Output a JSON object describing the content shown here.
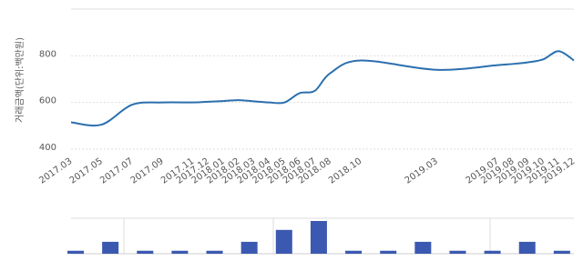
{
  "chart_data": [
    {
      "type": "line",
      "y_label": "거래금액(단위:백만원)",
      "categories": [
        "2017.03",
        "2017.05",
        "2017.07",
        "2017.09",
        "2017.11",
        "2017.12",
        "2018.01",
        "2018.02",
        "2018.03",
        "2018.04",
        "2018.05",
        "2018.06",
        "2018.07",
        "2018.08",
        "2018.10",
        "2019.03",
        "2019.07",
        "2019.08",
        "2019.09",
        "2019.10",
        "2019.11",
        "2019.12"
      ],
      "values": [
        515,
        505,
        590,
        600,
        600,
        603,
        606,
        610,
        605,
        600,
        600,
        640,
        650,
        725,
        780,
        740,
        760,
        765,
        772,
        785,
        820,
        780
      ],
      "color": "#2b6fae",
      "ylim": [
        400,
        1000
      ],
      "yticks": [
        400,
        600,
        800
      ],
      "grid": true
    },
    {
      "type": "bar",
      "categories": [
        null,
        null,
        null,
        null,
        null,
        null,
        null,
        null,
        null,
        null,
        null,
        null,
        null,
        null,
        null
      ],
      "values": [
        1,
        4,
        1,
        1,
        1,
        4,
        8,
        11,
        1,
        1,
        4,
        1,
        1,
        4,
        1
      ],
      "color": "#3b59b0"
    }
  ]
}
